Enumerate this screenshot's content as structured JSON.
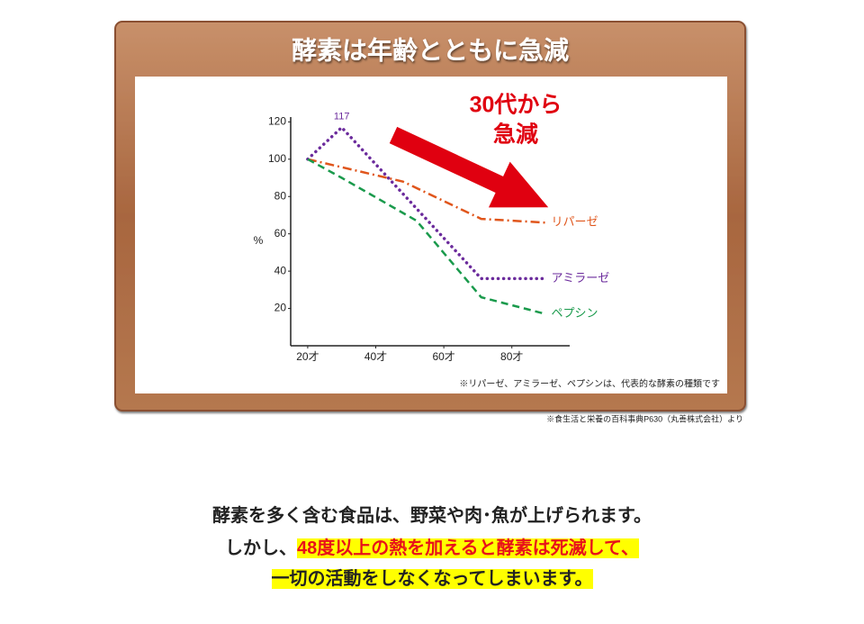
{
  "chart_data": {
    "type": "line",
    "title": "酵素は年齢とともに急減",
    "annotation": [
      "30代から",
      "急減"
    ],
    "y_label": "%",
    "footnote": "※リパーゼ、アミラーゼ、ペプシンは、代表的な酵素の種類です",
    "xlim": [
      15,
      97
    ],
    "ylim": [
      0,
      125
    ],
    "xticks": [
      {
        "value": 20,
        "label": "20才"
      },
      {
        "value": 40,
        "label": "40才"
      },
      {
        "value": 60,
        "label": "60才"
      },
      {
        "value": 80,
        "label": "80才"
      }
    ],
    "yticks": [
      20,
      40,
      60,
      80,
      100,
      120
    ],
    "series": [
      {
        "name": "リパーゼ",
        "color": "#e0561c",
        "dash": "dash-dot",
        "x": [
          20,
          48,
          71,
          90
        ],
        "values": [
          100,
          88,
          68,
          66
        ]
      },
      {
        "name": "アミラーゼ",
        "color": "#6b2b9c",
        "dash": "dot",
        "x": [
          20,
          30,
          71,
          90
        ],
        "values": [
          100,
          117,
          36,
          36
        ]
      },
      {
        "name": "ペプシン",
        "color": "#1a9a4c",
        "dash": "dash",
        "x": [
          20,
          30,
          52,
          71,
          90
        ],
        "values": [
          100,
          90,
          67,
          26,
          17
        ]
      }
    ],
    "peak_label": {
      "series": 1,
      "index": 1
    }
  },
  "source": "※食生活と栄養の百科事典P630（丸善株式会社）より",
  "body": {
    "line1": "酵素を多く含む食品は、野菜や肉･魚が上げられます。",
    "line2_plain": "しかし、",
    "line2_highlight": "48度以上の熱を加えると酵素は死滅して、",
    "line3_highlight": "一切の活動をしなくなってしまいます。"
  }
}
